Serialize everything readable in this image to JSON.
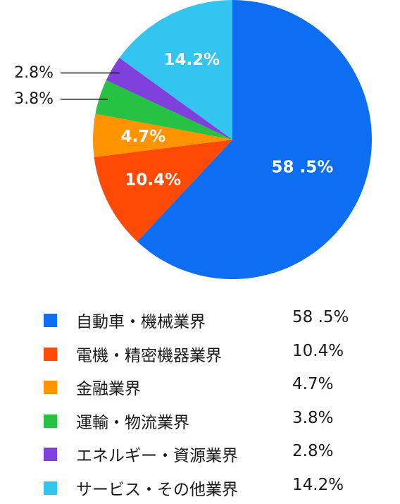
{
  "chart_data": {
    "type": "pie",
    "start": "12 o'clock",
    "direction": "clockwise",
    "slices": [
      {
        "name": "自動車・機械業界",
        "value": 58.5,
        "label": "58 .5%",
        "color": "#0D6EF2",
        "label_placement": "inside"
      },
      {
        "name": "電機・精密機器業界",
        "value": 10.4,
        "label": "10.4%",
        "color": "#FF4A05",
        "label_placement": "inside"
      },
      {
        "name": "金融業界",
        "value": 4.7,
        "label": "4.7%",
        "color": "#FF9300",
        "label_placement": "inside"
      },
      {
        "name": "運輸・物流業界",
        "value": 3.8,
        "label": "3.8%",
        "color": "#25C244",
        "label_placement": "outside"
      },
      {
        "name": "エネルギー・資源業界",
        "value": 2.8,
        "label": "2.8%",
        "color": "#8040DC",
        "label_placement": "outside"
      },
      {
        "name": "サービス・その他業界",
        "value": 14.2,
        "label": "14.2%",
        "color": "#33C5F0",
        "label_placement": "inside"
      }
    ]
  }
}
